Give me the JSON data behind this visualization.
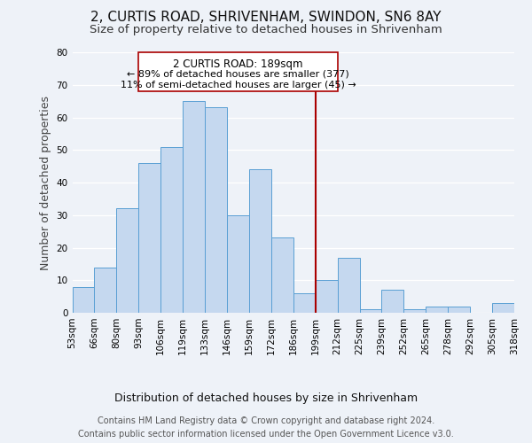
{
  "title": "2, CURTIS ROAD, SHRIVENHAM, SWINDON, SN6 8AY",
  "subtitle": "Size of property relative to detached houses in Shrivenham",
  "xlabel": "Distribution of detached houses by size in Shrivenham",
  "ylabel": "Number of detached properties",
  "bar_labels": [
    "53sqm",
    "66sqm",
    "80sqm",
    "93sqm",
    "106sqm",
    "119sqm",
    "133sqm",
    "146sqm",
    "159sqm",
    "172sqm",
    "186sqm",
    "199sqm",
    "212sqm",
    "225sqm",
    "239sqm",
    "252sqm",
    "265sqm",
    "278sqm",
    "292sqm",
    "305sqm",
    "318sqm"
  ],
  "bar_heights": [
    8,
    14,
    32,
    46,
    51,
    65,
    63,
    30,
    44,
    23,
    6,
    10,
    17,
    1,
    7,
    1,
    2,
    2,
    0,
    3
  ],
  "bar_color": "#c5d8ef",
  "bar_edge_color": "#5a9fd4",
  "ylim": [
    0,
    80
  ],
  "yticks": [
    0,
    10,
    20,
    30,
    40,
    50,
    60,
    70,
    80
  ],
  "vline_color": "#aa0000",
  "annotation_box_edge": "#aa0000",
  "annotation_title": "2 CURTIS ROAD: 189sqm",
  "annotation_line1": "← 89% of detached houses are smaller (377)",
  "annotation_line2": "11% of semi-detached houses are larger (45) →",
  "footer_line1": "Contains HM Land Registry data © Crown copyright and database right 2024.",
  "footer_line2": "Contains public sector information licensed under the Open Government Licence v3.0.",
  "bg_color": "#eef2f8",
  "grid_color": "#ffffff",
  "title_fontsize": 11,
  "subtitle_fontsize": 9.5,
  "tick_fontsize": 7.5,
  "ylabel_fontsize": 9,
  "xlabel_fontsize": 9,
  "footer_fontsize": 7
}
